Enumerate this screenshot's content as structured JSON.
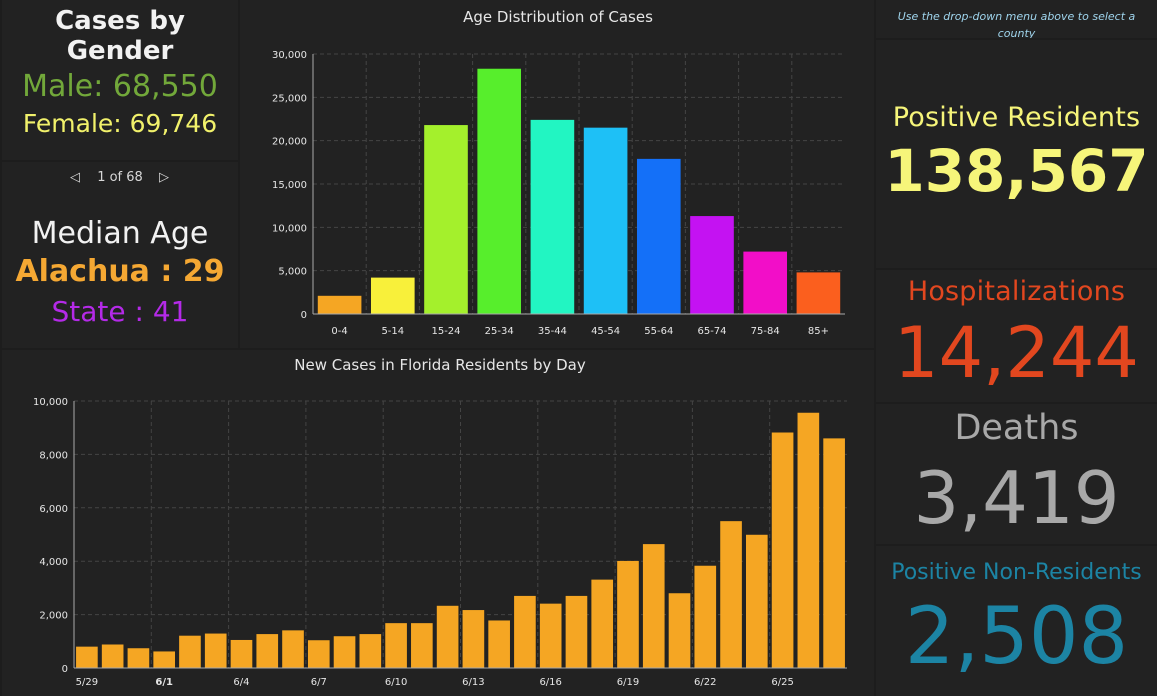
{
  "gender": {
    "title": "Cases by Gender",
    "male": "Male: 68,550",
    "female": "Female: 69,746"
  },
  "pager": {
    "text": "1 of 68"
  },
  "median": {
    "title": "Median Age",
    "county": "Alachua : 29",
    "state": "State : 41"
  },
  "instruction": "Use the drop-down menu above to select a county",
  "stats": {
    "positive_residents_label": "Positive Residents",
    "positive_residents_value": "138,567",
    "hospitalizations_label": "Hospitalizations",
    "hospitalizations_value": "14,244",
    "deaths_label": "Deaths",
    "deaths_value": "3,419",
    "non_residents_label": "Positive Non-Residents",
    "non_residents_value": "2,508"
  },
  "colors": {
    "male": "#72a83a",
    "female": "#f1f16b",
    "county": "#f5a833",
    "state": "#b42ae8",
    "positive": "#f6f57a",
    "hosp": "#e2471f",
    "deaths": "#a8a8a8",
    "nonres": "#1c84a4"
  },
  "chart_data": [
    {
      "type": "bar",
      "title": "Age Distribution of Cases",
      "categories": [
        "0-4",
        "5-14",
        "15-24",
        "25-34",
        "35-44",
        "45-54",
        "55-64",
        "65-74",
        "75-84",
        "85+"
      ],
      "values": [
        2100,
        4200,
        21800,
        28300,
        22400,
        21500,
        17900,
        11300,
        7200,
        4800
      ],
      "colors": [
        "#f5a623",
        "#f8f03a",
        "#a4f02c",
        "#57ee2c",
        "#22f5c2",
        "#1ec0f6",
        "#1470f8",
        "#c412f2",
        "#f20ec8",
        "#fb5f1e"
      ],
      "ylim": [
        0,
        30000
      ],
      "yticks": [
        0,
        5000,
        10000,
        15000,
        20000,
        25000,
        30000
      ],
      "ytick_labels": [
        "0",
        "5,000",
        "10,000",
        "15,000",
        "20,000",
        "25,000",
        "30,000"
      ],
      "grid": true,
      "xlabel": "",
      "ylabel": ""
    },
    {
      "type": "bar",
      "title": "New Cases in Florida Residents by Day",
      "categories": [
        "5/29",
        "5/30",
        "5/31",
        "6/1",
        "6/2",
        "6/3",
        "6/4",
        "6/5",
        "6/6",
        "6/7",
        "6/8",
        "6/9",
        "6/10",
        "6/11",
        "6/12",
        "6/13",
        "6/14",
        "6/15",
        "6/16",
        "6/17",
        "6/18",
        "6/19",
        "6/20",
        "6/21",
        "6/22",
        "6/23",
        "6/24",
        "6/25",
        "6/26",
        "6/27"
      ],
      "values": [
        800,
        880,
        740,
        620,
        1210,
        1290,
        1050,
        1270,
        1410,
        1040,
        1190,
        1270,
        1680,
        1680,
        2330,
        2170,
        1780,
        2700,
        2410,
        2700,
        3310,
        4010,
        4640,
        2800,
        3830,
        5500,
        4990,
        8820,
        9560,
        8600
      ],
      "tick_labels": [
        "5/29",
        "",
        "",
        "6/1",
        "",
        "",
        "6/4",
        "",
        "",
        "6/7",
        "",
        "",
        "6/10",
        "",
        "",
        "6/13",
        "",
        "",
        "6/16",
        "",
        "",
        "6/19",
        "",
        "",
        "6/22",
        "",
        "",
        "6/25",
        "",
        ""
      ],
      "bold_ticks": [
        "6/1"
      ],
      "color": "#f5a623",
      "ylim": [
        0,
        10000
      ],
      "yticks": [
        0,
        2000,
        4000,
        6000,
        8000,
        10000
      ],
      "ytick_labels": [
        "0",
        "2,000",
        "4,000",
        "6,000",
        "8,000",
        "10,000"
      ],
      "grid": true,
      "xlabel": "",
      "ylabel": ""
    }
  ]
}
